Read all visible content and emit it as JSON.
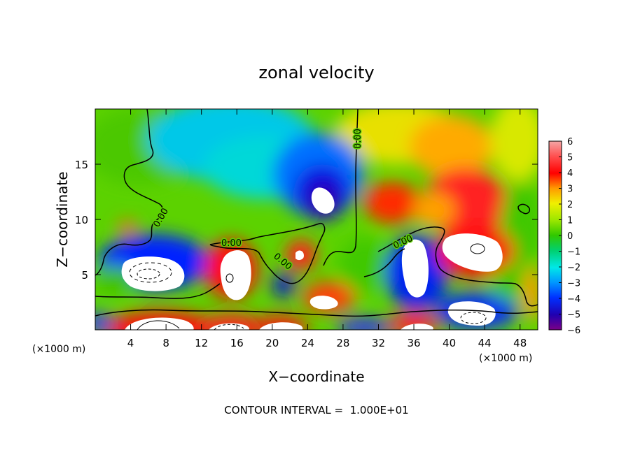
{
  "chart_data": {
    "type": "heatmap",
    "title": "zonal velocity",
    "xlabel": "X−coordinate",
    "ylabel": "Z−coordinate",
    "x_unit_left": "(×1000 m)",
    "x_unit_right": "(×1000 m)",
    "xlim": [
      0,
      50
    ],
    "ylim": [
      0,
      20
    ],
    "x_ticks": [
      4,
      8,
      12,
      16,
      20,
      24,
      28,
      32,
      36,
      40,
      44,
      48
    ],
    "y_ticks": [
      5,
      10,
      15
    ],
    "colorbar": {
      "range": [
        -6,
        6
      ],
      "ticks": [
        "6",
        "5",
        "4",
        "3",
        "2",
        "1",
        "0",
        "−1",
        "−2",
        "−3",
        "−4",
        "−5",
        "−6"
      ]
    },
    "contour_labels": [
      "0.00",
      "0.00",
      "0.00",
      "0.00",
      "0.00"
    ],
    "footer": "CONTOUR INTERVAL =  1.000E+01",
    "colors": {
      "background": "#ffffff",
      "max": "#f4a6a6",
      "min": "#7a0088",
      "zero": "#55d000"
    }
  }
}
